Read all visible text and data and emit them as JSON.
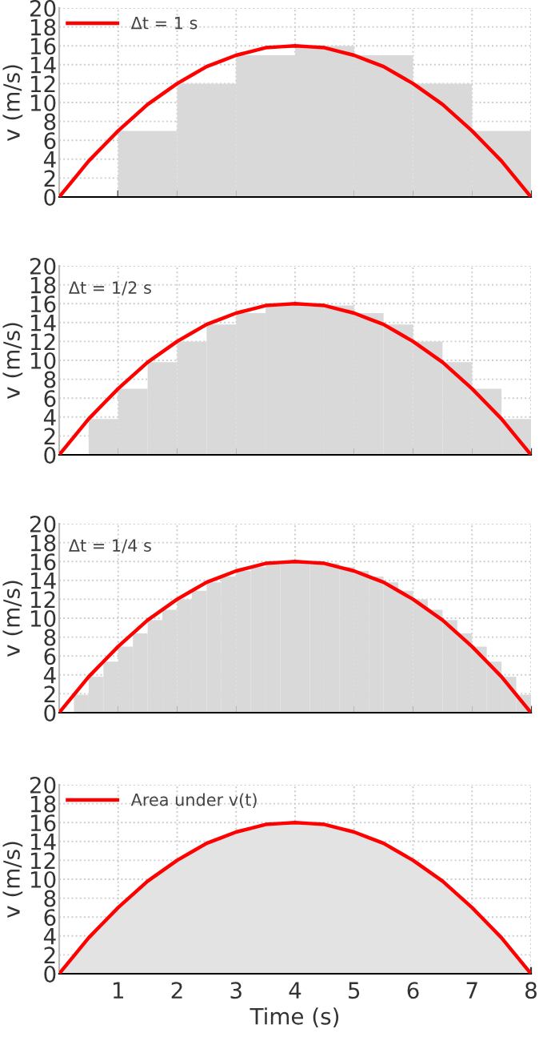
{
  "chart_data": [
    {
      "type": "histogram",
      "ylabel": "v (m/s)",
      "bins": [
        0,
        1,
        2,
        3,
        4,
        5,
        6,
        7,
        8
      ],
      "values": [
        0,
        7,
        12,
        15,
        16,
        15,
        12,
        7
      ],
      "color": "#d9d9d9",
      "series": [
        {
          "type": "line",
          "name": "Δt = 1 s",
          "color": "#ff0000",
          "x": [
            0,
            0.25,
            0.5,
            0.75,
            1,
            1.25,
            1.5,
            1.75,
            2,
            2.25,
            2.5,
            2.75,
            3,
            3.25,
            3.5,
            3.75,
            4,
            4.25,
            4.5,
            4.75,
            5,
            5.25,
            5.5,
            5.75,
            6,
            6.25,
            6.5,
            6.75,
            7,
            7.25,
            7.5,
            7.75,
            8
          ],
          "values": [
            0,
            1.9,
            3.8,
            5.4,
            7,
            8.4,
            9.8,
            10.9,
            12,
            12.9,
            13.8,
            14.4,
            15,
            15.4,
            15.8,
            15.9,
            16,
            15.9,
            15.8,
            15.4,
            15,
            14.4,
            13.8,
            12.9,
            12,
            10.9,
            9.8,
            8.4,
            7,
            5.4,
            3.8,
            1.9,
            0
          ]
        }
      ],
      "xlim": [
        0,
        8
      ],
      "xticks": [
        {
          "value": 1,
          "label": null
        },
        {
          "value": 2,
          "label": null
        },
        {
          "value": 3,
          "label": null
        },
        {
          "value": 4,
          "label": null
        },
        {
          "value": 5,
          "label": null
        },
        {
          "value": 6,
          "label": null
        },
        {
          "value": 7,
          "label": null
        },
        {
          "value": 8,
          "label": null
        }
      ],
      "ylim": [
        0,
        20
      ],
      "yticks": [
        0,
        2,
        4,
        6,
        8,
        10,
        12,
        14,
        16,
        18,
        20
      ],
      "grid": true,
      "legend": "top left",
      "tick_labels": "y"
    },
    {
      "type": "histogram",
      "ylabel": "v (m/s)",
      "bins": [
        0,
        0.5,
        1,
        1.5,
        2,
        2.5,
        3,
        3.5,
        4,
        4.5,
        5,
        5.5,
        6,
        6.5,
        7,
        7.5,
        8
      ],
      "values": [
        0,
        3.8,
        7,
        9.8,
        12,
        13.8,
        15,
        15.8,
        16,
        15.8,
        15,
        13.8,
        12,
        9.8,
        7,
        3.8
      ],
      "color": "#d9d9d9",
      "series": [
        {
          "type": "line",
          "color": "#ff0000",
          "x": [
            0,
            0.25,
            0.5,
            0.75,
            1,
            1.25,
            1.5,
            1.75,
            2,
            2.25,
            2.5,
            2.75,
            3,
            3.25,
            3.5,
            3.75,
            4,
            4.25,
            4.5,
            4.75,
            5,
            5.25,
            5.5,
            5.75,
            6,
            6.25,
            6.5,
            6.75,
            7,
            7.25,
            7.5,
            7.75,
            8
          ],
          "values": [
            0,
            1.9,
            3.8,
            5.4,
            7,
            8.4,
            9.8,
            10.9,
            12,
            12.9,
            13.8,
            14.4,
            15,
            15.4,
            15.8,
            15.9,
            16,
            15.9,
            15.8,
            15.4,
            15,
            14.4,
            13.8,
            12.9,
            12,
            10.9,
            9.8,
            8.4,
            7,
            5.4,
            3.8,
            1.9,
            0
          ]
        }
      ],
      "annotations": [
        "Δt = 1/2 s"
      ],
      "xlim": [
        0,
        8
      ],
      "xticks": [
        {
          "value": 1,
          "label": null
        },
        {
          "value": 2,
          "label": null
        },
        {
          "value": 3,
          "label": null
        },
        {
          "value": 4,
          "label": null
        },
        {
          "value": 5,
          "label": null
        },
        {
          "value": 6,
          "label": null
        },
        {
          "value": 7,
          "label": null
        },
        {
          "value": 8,
          "label": null
        }
      ],
      "ylim": [
        0,
        20
      ],
      "yticks": [
        0,
        2,
        4,
        6,
        8,
        10,
        12,
        14,
        16,
        18,
        20
      ],
      "grid": true,
      "tick_labels": "y"
    },
    {
      "type": "histogram",
      "ylabel": "v (m/s)",
      "bins": [
        0,
        0.25,
        0.5,
        0.75,
        1,
        1.25,
        1.5,
        1.75,
        2,
        2.25,
        2.5,
        2.75,
        3,
        3.25,
        3.5,
        3.75,
        4,
        4.25,
        4.5,
        4.75,
        5,
        5.25,
        5.5,
        5.75,
        6,
        6.25,
        6.5,
        6.75,
        7,
        7.25,
        7.5,
        7.75,
        8
      ],
      "values": [
        0,
        1.9,
        3.8,
        5.4,
        7,
        8.4,
        9.8,
        10.9,
        12,
        12.9,
        13.8,
        14.4,
        15,
        15.4,
        15.8,
        15.9,
        16,
        15.9,
        15.8,
        15.4,
        15,
        14.4,
        13.8,
        12.9,
        12,
        10.9,
        9.8,
        8.4,
        7,
        5.4,
        3.8,
        1.9
      ],
      "color": "#d9d9d9",
      "series": [
        {
          "type": "line",
          "color": "#ff0000",
          "x": [
            0,
            0.25,
            0.5,
            0.75,
            1,
            1.25,
            1.5,
            1.75,
            2,
            2.25,
            2.5,
            2.75,
            3,
            3.25,
            3.5,
            3.75,
            4,
            4.25,
            4.5,
            4.75,
            5,
            5.25,
            5.5,
            5.75,
            6,
            6.25,
            6.5,
            6.75,
            7,
            7.25,
            7.5,
            7.75,
            8
          ],
          "values": [
            0,
            1.9,
            3.8,
            5.4,
            7,
            8.4,
            9.8,
            10.9,
            12,
            12.9,
            13.8,
            14.4,
            15,
            15.4,
            15.8,
            15.9,
            16,
            15.9,
            15.8,
            15.4,
            15,
            14.4,
            13.8,
            12.9,
            12,
            10.9,
            9.8,
            8.4,
            7,
            5.4,
            3.8,
            1.9,
            0
          ]
        }
      ],
      "annotations": [
        "Δt = 1/4 s"
      ],
      "xlim": [
        0,
        8
      ],
      "xticks": [
        {
          "value": 1,
          "label": null
        },
        {
          "value": 2,
          "label": null
        },
        {
          "value": 3,
          "label": null
        },
        {
          "value": 4,
          "label": null
        },
        {
          "value": 5,
          "label": null
        },
        {
          "value": 6,
          "label": null
        },
        {
          "value": 7,
          "label": null
        },
        {
          "value": 8,
          "label": null
        }
      ],
      "ylim": [
        0,
        20
      ],
      "yticks": [
        0,
        2,
        4,
        6,
        8,
        10,
        12,
        14,
        16,
        18,
        20
      ],
      "grid": true,
      "tick_labels": "y"
    },
    {
      "type": "area",
      "xlabel": "Time (s)",
      "ylabel": "v (m/s)",
      "color": "#e3e3e3",
      "series": [
        {
          "type": "area",
          "name": "Area under v(t)",
          "color": "#ff0000",
          "x": [
            0,
            0.25,
            0.5,
            0.75,
            1,
            1.25,
            1.5,
            1.75,
            2,
            2.25,
            2.5,
            2.75,
            3,
            3.25,
            3.5,
            3.75,
            4,
            4.25,
            4.5,
            4.75,
            5,
            5.25,
            5.5,
            5.75,
            6,
            6.25,
            6.5,
            6.75,
            7,
            7.25,
            7.5,
            7.75,
            8
          ],
          "values": [
            0,
            1.9,
            3.8,
            5.4,
            7,
            8.4,
            9.8,
            10.9,
            12,
            12.9,
            13.8,
            14.4,
            15,
            15.4,
            15.8,
            15.9,
            16,
            15.9,
            15.8,
            15.4,
            15,
            14.4,
            13.8,
            12.9,
            12,
            10.9,
            9.8,
            8.4,
            7,
            5.4,
            3.8,
            1.9,
            0
          ]
        }
      ],
      "xlim": [
        0,
        8
      ],
      "xticks": [
        1,
        2,
        3,
        4,
        5,
        6,
        7,
        8
      ],
      "ylim": [
        0,
        20
      ],
      "yticks": [
        0,
        2,
        4,
        6,
        8,
        10,
        12,
        14,
        16,
        18,
        20
      ],
      "grid": true,
      "legend": "top left"
    }
  ]
}
